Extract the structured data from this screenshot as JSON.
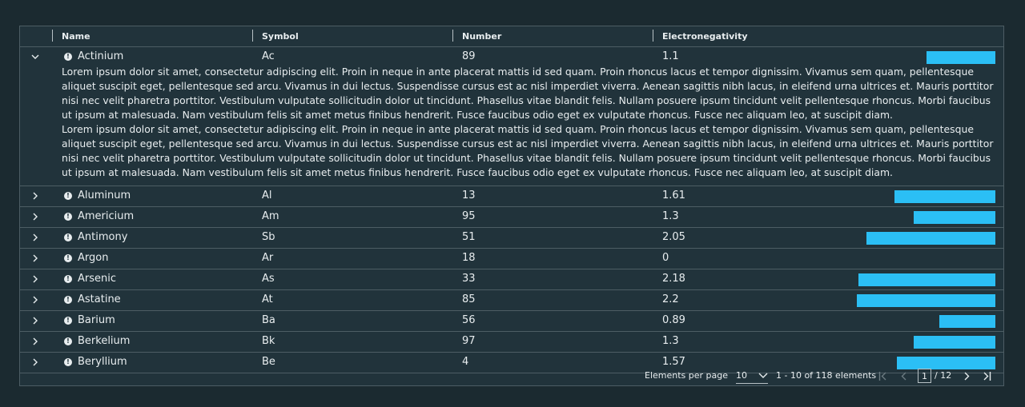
{
  "columns": {
    "name": "Name",
    "symbol": "Symbol",
    "number": "Number",
    "electronegativity": "Electronegativity"
  },
  "expanded_row": {
    "name": "Actinium",
    "symbol": "Ac",
    "number": "89",
    "electronegativity": "1.1",
    "bar_value": 1.1,
    "details": [
      "Lorem ipsum dolor sit amet, consectetur adipiscing elit. Proin in neque in ante placerat mattis id sed quam. Proin rhoncus lacus et tempor dignissim. Vivamus sem quam, pellentesque aliquet suscipit eget, pellentesque sed arcu. Vivamus in dui lectus. Suspendisse cursus est ac nisl imperdiet viverra. Aenean sagittis nibh lacus, in eleifend urna ultrices et. Mauris porttitor nisi nec velit pharetra porttitor. Vestibulum vulputate sollicitudin dolor ut tincidunt. Phasellus vitae blandit felis. Nullam posuere ipsum tincidunt velit pellentesque rhoncus. Morbi faucibus ut ipsum at malesuada. Nam vestibulum felis sit amet metus finibus hendrerit. Fusce faucibus odio eget ex vulputate rhoncus. Fusce nec aliquam leo, at suscipit diam.",
      "Lorem ipsum dolor sit amet, consectetur adipiscing elit. Proin in neque in ante placerat mattis id sed quam. Proin rhoncus lacus et tempor dignissim. Vivamus sem quam, pellentesque aliquet suscipit eget, pellentesque sed arcu. Vivamus in dui lectus. Suspendisse cursus est ac nisl imperdiet viverra. Aenean sagittis nibh lacus, in eleifend urna ultrices et. Mauris porttitor nisi nec velit pharetra porttitor. Vestibulum vulputate sollicitudin dolor ut tincidunt. Phasellus vitae blandit felis. Nullam posuere ipsum tincidunt velit pellentesque rhoncus. Morbi faucibus ut ipsum at malesuada. Nam vestibulum felis sit amet metus finibus hendrerit. Fusce faucibus odio eget ex vulputate rhoncus. Fusce nec aliquam leo, at suscipit diam."
    ]
  },
  "rows": [
    {
      "name": "Aluminum",
      "symbol": "Al",
      "number": "13",
      "electronegativity": "1.61",
      "bar_value": 1.61
    },
    {
      "name": "Americium",
      "symbol": "Am",
      "number": "95",
      "electronegativity": "1.3",
      "bar_value": 1.3
    },
    {
      "name": "Antimony",
      "symbol": "Sb",
      "number": "51",
      "electronegativity": "2.05",
      "bar_value": 2.05
    },
    {
      "name": "Argon",
      "symbol": "Ar",
      "number": "18",
      "electronegativity": "0",
      "bar_value": 0
    },
    {
      "name": "Arsenic",
      "symbol": "As",
      "number": "33",
      "electronegativity": "2.18",
      "bar_value": 2.18
    },
    {
      "name": "Astatine",
      "symbol": "At",
      "number": "85",
      "electronegativity": "2.2",
      "bar_value": 2.2
    },
    {
      "name": "Barium",
      "symbol": "Ba",
      "number": "56",
      "electronegativity": "0.89",
      "bar_value": 0.89
    },
    {
      "name": "Berkelium",
      "symbol": "Bk",
      "number": "97",
      "electronegativity": "1.3",
      "bar_value": 1.3
    },
    {
      "name": "Beryllium",
      "symbol": "Be",
      "number": "4",
      "electronegativity": "1.57",
      "bar_value": 1.57
    }
  ],
  "bar_max": 3.44,
  "bar_color": "#2bbff5",
  "footer": {
    "per_page_label": "Elements per page",
    "per_page_value": "10",
    "range_text": "1 - 10 of 118 elements",
    "current_page": "1",
    "total_pages": "/ 12"
  },
  "icons": {
    "row_status": "exclamation-circle-icon",
    "expand": "chevron-right-icon",
    "collapse": "chevron-down-icon"
  }
}
